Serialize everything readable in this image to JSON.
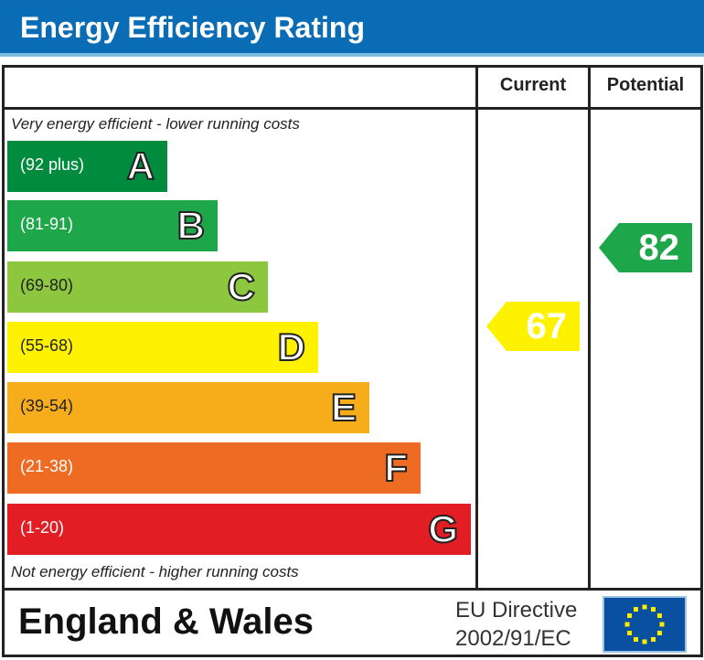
{
  "title": "Energy Efficiency Rating",
  "chart_data": {
    "type": "table",
    "columns": [
      "Current",
      "Potential"
    ],
    "top_note": "Very energy efficient - lower running costs",
    "bottom_note": "Not energy efficient - higher running costs",
    "bands": [
      {
        "letter": "A",
        "range": "(92 plus)",
        "color": "#008b3e"
      },
      {
        "letter": "B",
        "range": "(81-91)",
        "color": "#1ea64a"
      },
      {
        "letter": "C",
        "range": "(69-80)",
        "color": "#8dc63f"
      },
      {
        "letter": "D",
        "range": "(55-68)",
        "color": "#fff200"
      },
      {
        "letter": "E",
        "range": "(39-54)",
        "color": "#f7ac1c"
      },
      {
        "letter": "F",
        "range": "(21-38)",
        "color": "#ee6b24"
      },
      {
        "letter": "G",
        "range": "(1-20)",
        "color": "#e31d24"
      }
    ],
    "current": {
      "value": "67",
      "band": "D",
      "color": "#fff200"
    },
    "potential": {
      "value": "82",
      "band": "B",
      "color": "#1ea64a"
    }
  },
  "footer": {
    "region": "England & Wales",
    "directive_line1": "EU Directive",
    "directive_line2": "2002/91/EC"
  }
}
